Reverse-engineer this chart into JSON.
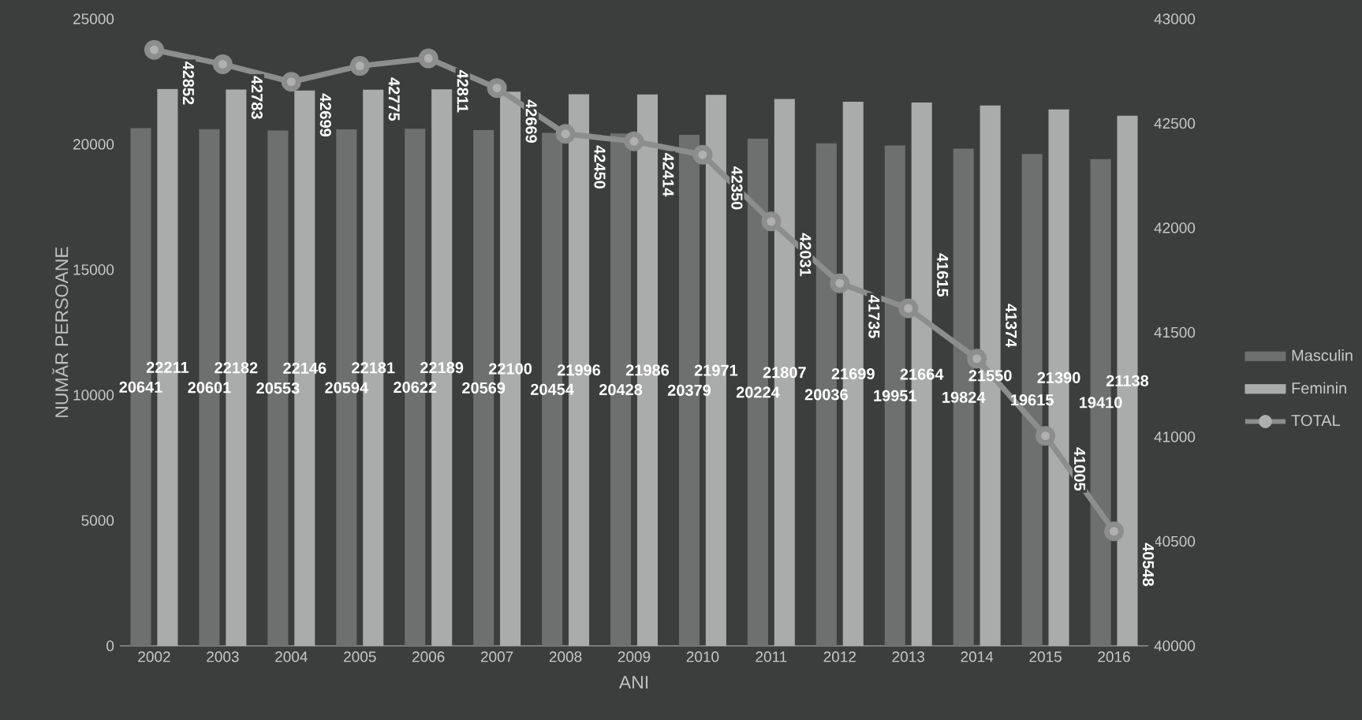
{
  "chart_data": {
    "type": "bar",
    "xlabel": "ANI",
    "ylabel": "NUMĂR PERSOANE",
    "categories": [
      "2002",
      "2003",
      "2004",
      "2005",
      "2006",
      "2007",
      "2008",
      "2009",
      "2010",
      "2011",
      "2012",
      "2013",
      "2014",
      "2015",
      "2016"
    ],
    "series": [
      {
        "name": "Masculin",
        "color": "#6e6f6f",
        "values": [
          20641,
          20601,
          20553,
          20594,
          20622,
          20569,
          20454,
          20428,
          20379,
          20224,
          20036,
          19951,
          19824,
          19615,
          19410
        ]
      },
      {
        "name": "Feminin",
        "color": "#aaabab",
        "values": [
          22211,
          22182,
          22146,
          22181,
          22189,
          22100,
          21996,
          21986,
          21971,
          21807,
          21699,
          21664,
          21550,
          21390,
          21138
        ]
      },
      {
        "name": "TOTAL",
        "type": "line",
        "axis": "y2",
        "color": "#8c8e8d",
        "values": [
          42852,
          42783,
          42699,
          42775,
          42811,
          42669,
          42450,
          42414,
          42350,
          42031,
          41735,
          41615,
          41374,
          41005,
          40548
        ]
      }
    ],
    "ylim": [
      0,
      25000
    ],
    "yticks": [
      0,
      5000,
      10000,
      15000,
      20000,
      25000
    ],
    "y2lim": [
      40000,
      43000
    ],
    "y2ticks": [
      40000,
      40500,
      41000,
      41500,
      42000,
      42500,
      43000
    ],
    "data_labels": true,
    "legend": "right",
    "grid": false,
    "marker": "circle"
  }
}
